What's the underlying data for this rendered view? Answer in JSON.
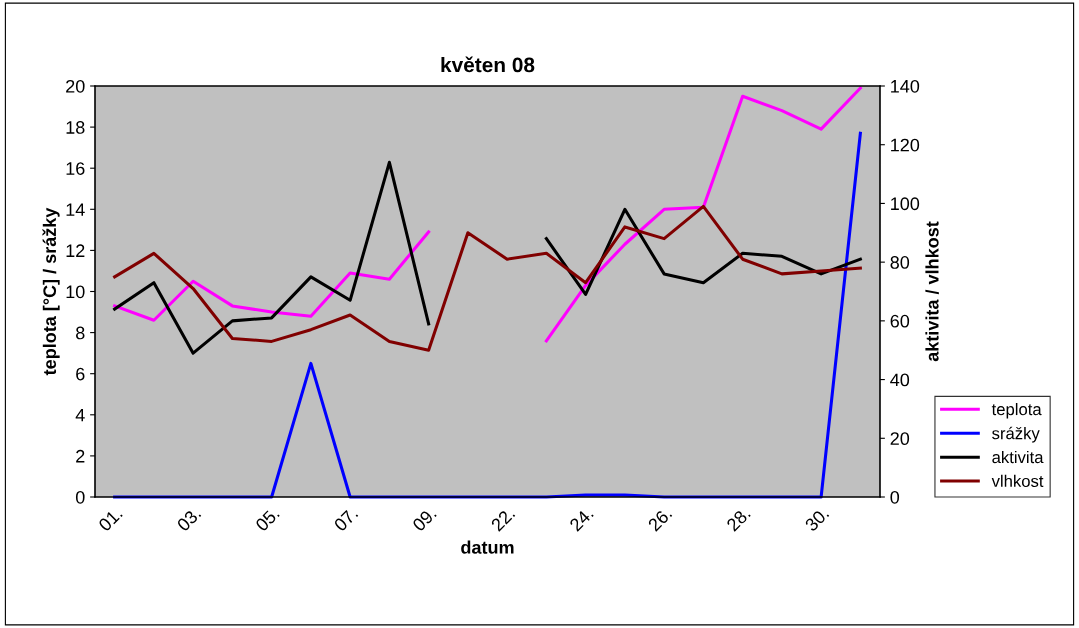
{
  "chart_data": {
    "type": "line",
    "title": "květen 08",
    "xlabel": "datum",
    "ylabel": "teplota [°C] / srážky",
    "y2label": "aktivita / vlhkost",
    "categories": [
      "01.",
      null,
      "03.",
      null,
      "05.",
      null,
      "07.",
      null,
      "09.",
      null,
      "22.",
      null,
      "24.",
      null,
      "26.",
      null,
      "28.",
      null,
      "30.",
      null
    ],
    "series": [
      {
        "name": "teplota",
        "color": "#ff00ff",
        "values": [
          9.3,
          8.6,
          10.5,
          9.3,
          9.0,
          8.8,
          10.9,
          10.6,
          12.9,
          null,
          null,
          7.6,
          10.3,
          12.3,
          14.0,
          14.1,
          19.5,
          18.8,
          17.9,
          19.9
        ]
      },
      {
        "name": "srážky",
        "color": "#0000ff",
        "values": [
          0,
          0,
          0,
          0,
          0,
          6.5,
          0,
          0,
          0,
          0,
          0,
          0,
          0.1,
          0.1,
          0,
          0,
          0,
          0,
          0,
          17.7
        ]
      },
      {
        "name": "aktivita",
        "color": "#000000",
        "axis": "y2",
        "values": [
          64,
          73,
          49,
          60,
          61,
          75,
          67,
          114,
          59,
          null,
          null,
          88,
          69,
          98,
          76,
          73,
          83,
          82,
          76,
          81
        ]
      },
      {
        "name": "vlhkost",
        "color": "#800000",
        "axis": "y2",
        "values": [
          75,
          83,
          71,
          54,
          53,
          57,
          62,
          53,
          50,
          90,
          81,
          83,
          73,
          92,
          88,
          99,
          81,
          76,
          77,
          78
        ]
      }
    ],
    "ylim": [
      0,
      20
    ],
    "yticks": [
      0,
      2,
      4,
      6,
      8,
      10,
      12,
      14,
      16,
      18,
      20
    ],
    "y2lim": [
      0,
      140
    ],
    "y2ticks": [
      0,
      20,
      40,
      60,
      80,
      100,
      120,
      140
    ],
    "grid": false,
    "legend": "right",
    "line_style": "solid",
    "marker": "none"
  }
}
